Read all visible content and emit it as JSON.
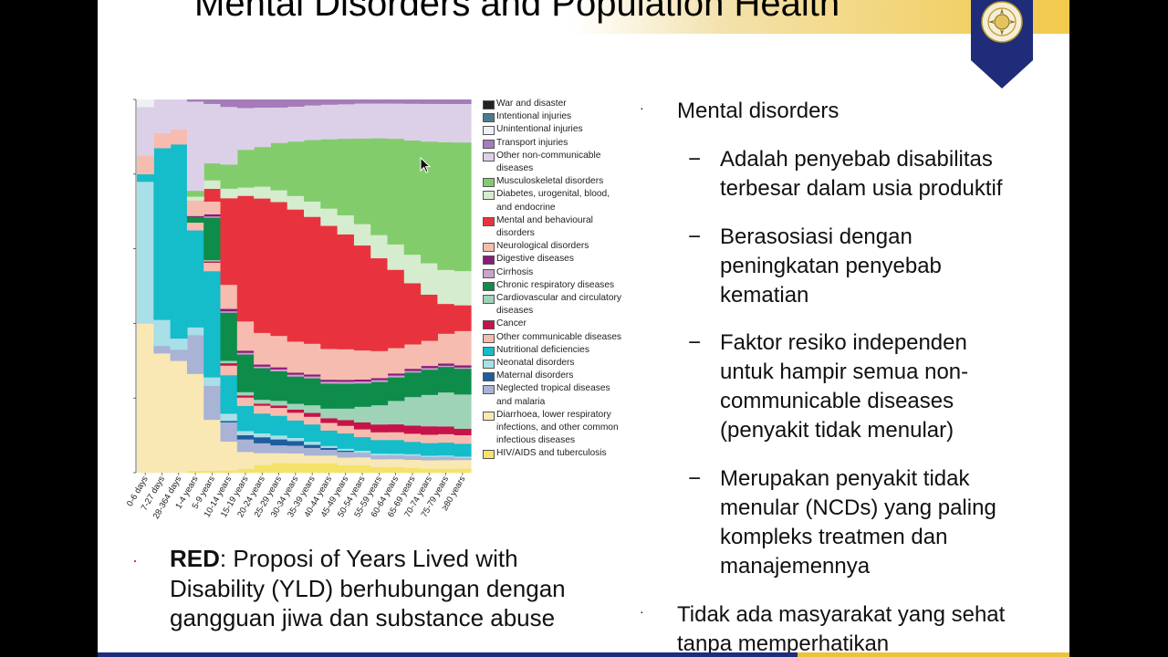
{
  "slide": {
    "title": "Mental Disorders and Population Health",
    "accent_gold": "#f2c94a",
    "accent_navy": "#1e2c7a"
  },
  "logo": {
    "icon": "university-shield-emblem"
  },
  "chart_data": {
    "type": "area",
    "title": "",
    "xlabel": "",
    "ylabel": "",
    "ylim": [
      0,
      1
    ],
    "x": [
      "0-6 days",
      "7-27 days",
      "28-364 days",
      "1-4 years",
      "5-9 years",
      "10-14 years",
      "15-19 years",
      "20-24 years",
      "25-29 years",
      "30-34 years",
      "35-39 years",
      "40-44 years",
      "45-49 years",
      "50-54 years",
      "55-59 years",
      "60-64 years",
      "65-69 years",
      "70-74 years",
      "75-79 years",
      "≥80 years"
    ],
    "series": [
      {
        "name": "HIV/AIDS and tuberculosis",
        "color": "#f4e36b",
        "values": [
          0.0,
          0.0,
          0.0,
          0.005,
          0.005,
          0.005,
          0.01,
          0.02,
          0.025,
          0.025,
          0.025,
          0.025,
          0.02,
          0.02,
          0.015,
          0.015,
          0.012,
          0.01,
          0.01,
          0.01
        ]
      },
      {
        "name": "Diarrhoea, lower respiratory infections, and other common infectious diseases",
        "color": "#f9e8b4",
        "values": [
          0.4,
          0.32,
          0.3,
          0.25,
          0.12,
          0.06,
          0.04,
          0.03,
          0.025,
          0.025,
          0.02,
          0.02,
          0.02,
          0.02,
          0.02,
          0.02,
          0.02,
          0.02,
          0.02,
          0.02
        ]
      },
      {
        "name": "Neglected tropical diseases and malaria",
        "color": "#a9b3d6",
        "values": [
          0.0,
          0.02,
          0.03,
          0.1,
          0.08,
          0.04,
          0.03,
          0.025,
          0.02,
          0.02,
          0.02,
          0.015,
          0.015,
          0.012,
          0.01,
          0.01,
          0.01,
          0.008,
          0.008,
          0.005
        ]
      },
      {
        "name": "Maternal disorders",
        "color": "#1d5e9e",
        "values": [
          0.0,
          0.0,
          0.0,
          0.0,
          0.0,
          0.003,
          0.01,
          0.015,
          0.015,
          0.012,
          0.008,
          0.005,
          0.003,
          0.0,
          0.0,
          0.0,
          0.0,
          0.0,
          0.0,
          0.0
        ]
      },
      {
        "name": "Neonatal disorders",
        "color": "#a8dfe8",
        "values": [
          0.38,
          0.07,
          0.03,
          0.02,
          0.02,
          0.015,
          0.01,
          0.01,
          0.01,
          0.008,
          0.008,
          0.005,
          0.005,
          0.005,
          0.005,
          0.004,
          0.004,
          0.003,
          0.003,
          0.003
        ]
      },
      {
        "name": "Nutritional deficiencies",
        "color": "#15bcc9",
        "values": [
          0.02,
          0.46,
          0.52,
          0.25,
          0.25,
          0.08,
          0.06,
          0.05,
          0.05,
          0.045,
          0.045,
          0.04,
          0.04,
          0.035,
          0.035,
          0.035,
          0.03,
          0.03,
          0.03,
          0.03
        ]
      },
      {
        "name": "Other communicable diseases",
        "color": "#f6bcb0",
        "values": [
          0.02,
          0.02,
          0.02,
          0.02,
          0.02,
          0.02,
          0.02,
          0.02,
          0.02,
          0.02,
          0.02,
          0.02,
          0.02,
          0.02,
          0.02,
          0.02,
          0.02,
          0.02,
          0.02,
          0.02
        ]
      },
      {
        "name": "Cancer",
        "color": "#c8124a",
        "values": [
          0.0,
          0.0,
          0.0,
          0.0,
          0.003,
          0.005,
          0.005,
          0.005,
          0.006,
          0.008,
          0.01,
          0.012,
          0.015,
          0.018,
          0.02,
          0.02,
          0.02,
          0.02,
          0.018,
          0.015
        ]
      },
      {
        "name": "Cardiovascular and circulatory diseases",
        "color": "#9fd3b8",
        "values": [
          0.0,
          0.0,
          0.0,
          0.0,
          0.003,
          0.005,
          0.008,
          0.01,
          0.012,
          0.015,
          0.02,
          0.025,
          0.03,
          0.04,
          0.05,
          0.06,
          0.07,
          0.075,
          0.08,
          0.08
        ]
      },
      {
        "name": "Chronic respiratory diseases",
        "color": "#0e8c4a",
        "values": [
          0.0,
          0.0,
          0.0,
          0.015,
          0.1,
          0.1,
          0.09,
          0.08,
          0.075,
          0.07,
          0.07,
          0.065,
          0.065,
          0.06,
          0.06,
          0.06,
          0.06,
          0.06,
          0.06,
          0.06
        ]
      },
      {
        "name": "Cirrhosis",
        "color": "#c9a3cc",
        "values": [
          0.0,
          0.0,
          0.0,
          0.0,
          0.003,
          0.003,
          0.004,
          0.004,
          0.005,
          0.005,
          0.005,
          0.005,
          0.005,
          0.005,
          0.005,
          0.005,
          0.004,
          0.004,
          0.003,
          0.003
        ]
      },
      {
        "name": "Digestive diseases",
        "color": "#8b1a7a",
        "values": [
          0.0,
          0.0,
          0.0,
          0.002,
          0.005,
          0.005,
          0.005,
          0.005,
          0.005,
          0.005,
          0.005,
          0.005,
          0.005,
          0.005,
          0.005,
          0.005,
          0.005,
          0.005,
          0.005,
          0.005
        ]
      },
      {
        "name": "Neurological disorders",
        "color": "#f6bcb0",
        "values": [
          0.03,
          0.02,
          0.02,
          0.04,
          0.03,
          0.05,
          0.07,
          0.08,
          0.08,
          0.08,
          0.08,
          0.08,
          0.08,
          0.075,
          0.07,
          0.065,
          0.06,
          0.06,
          0.07,
          0.08
        ]
      },
      {
        "name": "Mental and behavioural disorders",
        "color": "#e8333f",
        "values": [
          0.0,
          0.0,
          0.0,
          0.0,
          0.03,
          0.18,
          0.3,
          0.34,
          0.34,
          0.34,
          0.33,
          0.32,
          0.3,
          0.27,
          0.24,
          0.2,
          0.15,
          0.11,
          0.07,
          0.06
        ]
      },
      {
        "name": "Diabetes, urogenital, blood, and endocrine",
        "color": "#d5ecce",
        "values": [
          0.0,
          0.0,
          0.0,
          0.01,
          0.02,
          0.02,
          0.02,
          0.03,
          0.03,
          0.035,
          0.04,
          0.045,
          0.05,
          0.055,
          0.06,
          0.065,
          0.07,
          0.075,
          0.08,
          0.08
        ]
      },
      {
        "name": "Musculoskeletal disorders",
        "color": "#82cc6c",
        "values": [
          0.0,
          0.0,
          0.0,
          0.015,
          0.04,
          0.05,
          0.09,
          0.1,
          0.12,
          0.14,
          0.16,
          0.18,
          0.2,
          0.22,
          0.25,
          0.27,
          0.28,
          0.29,
          0.3,
          0.3
        ]
      },
      {
        "name": "Other non-communicable diseases",
        "color": "#dcd0e8",
        "values": [
          0.13,
          0.09,
          0.08,
          0.23,
          0.14,
          0.12,
          0.1,
          0.1,
          0.09,
          0.09,
          0.09,
          0.09,
          0.09,
          0.09,
          0.09,
          0.09,
          0.09,
          0.09,
          0.09,
          0.09
        ]
      },
      {
        "name": "Transport injuries",
        "color": "#a57bb9",
        "values": [
          0.0,
          0.0,
          0.0,
          0.005,
          0.01,
          0.015,
          0.02,
          0.02,
          0.02,
          0.018,
          0.015,
          0.013,
          0.012,
          0.01,
          0.01,
          0.01,
          0.01,
          0.01,
          0.01,
          0.01
        ]
      },
      {
        "name": "Unintentional injuries",
        "color": "#eef1f4",
        "values": [
          0.02,
          0.0,
          0.0,
          0.0,
          0.0,
          0.0,
          0.0,
          0.0,
          0.0,
          0.0,
          0.0,
          0.0,
          0.0,
          0.0,
          0.0,
          0.0,
          0.0,
          0.0,
          0.0,
          0.0
        ]
      },
      {
        "name": "Intentional injuries",
        "color": "#4f7a8e",
        "values": [
          0.0,
          0.0,
          0.0,
          0.0,
          0.0,
          0.0,
          0.0,
          0.0,
          0.0,
          0.0,
          0.0,
          0.0,
          0.0,
          0.0,
          0.0,
          0.0,
          0.0,
          0.0,
          0.0,
          0.0
        ]
      },
      {
        "name": "War and disaster",
        "color": "#222222",
        "values": [
          0.0,
          0.0,
          0.0,
          0.0,
          0.0,
          0.0,
          0.0,
          0.0,
          0.0,
          0.0,
          0.0,
          0.0,
          0.0,
          0.0,
          0.0,
          0.0,
          0.0,
          0.0,
          0.0,
          0.0
        ]
      }
    ],
    "legend": [
      {
        "label": "War and disaster",
        "color": "#222222"
      },
      {
        "label": "Intentional injuries",
        "color": "#4f7a8e"
      },
      {
        "label": "Unintentional injuries",
        "color": "#eef1f4"
      },
      {
        "label": "Transport injuries",
        "color": "#a57bb9"
      },
      {
        "label": "Other non-communicable diseases",
        "color": "#dcd0e8"
      },
      {
        "label": "Musculoskeletal disorders",
        "color": "#82cc6c"
      },
      {
        "label": "Diabetes, urogenital, blood, and endocrine",
        "color": "#d5ecce"
      },
      {
        "label": "Mental and behavioural disorders",
        "color": "#e8333f"
      },
      {
        "label": "Neurological disorders",
        "color": "#f6bcb0"
      },
      {
        "label": "Digestive diseases",
        "color": "#8b1a7a"
      },
      {
        "label": "Cirrhosis",
        "color": "#c9a3cc"
      },
      {
        "label": "Chronic respiratory diseases",
        "color": "#0e8c4a"
      },
      {
        "label": "Cardiovascular and circulatory diseases",
        "color": "#9fd3b8"
      },
      {
        "label": "Cancer",
        "color": "#c8124a"
      },
      {
        "label": "Other communicable diseases",
        "color": "#f6bcb0"
      },
      {
        "label": "Nutritional deficiencies",
        "color": "#15bcc9"
      },
      {
        "label": "Neonatal disorders",
        "color": "#a8dfe8"
      },
      {
        "label": "Maternal disorders",
        "color": "#1d5e9e"
      },
      {
        "label": "Neglected tropical diseases and malaria",
        "color": "#a9b3d6"
      },
      {
        "label": "Diarrhoea, lower respiratory infections, and other common infectious diseases",
        "color": "#f9e8b4"
      },
      {
        "label": "HIV/AIDS and tuberculosis",
        "color": "#f4e36b"
      }
    ]
  },
  "left_text": {
    "bullet": "·",
    "bold": "RED",
    "rest": ": Proposi of Years Lived with Disability (YLD) berhubungan dengan gangguan jiwa dan substance abuse"
  },
  "right_text": {
    "bullet": "·",
    "main": "Mental  disorders",
    "dash": "−",
    "sub1": "Adalah penyebab disabilitas terbesar dalam usia produktif",
    "sub2": "Berasosiasi  dengan peningkatan penyebab kematian",
    "sub3": "Faktor resiko independen untuk hampir semua non-communicable diseases (penyakit  tidak  menular)",
    "sub4": "Merupakan penyakit tidak menular (NCDs) yang paling kompleks treatmen dan manajemennya",
    "main2": "Tidak ada masyarakat yang sehat tanpa memperhatikan"
  }
}
